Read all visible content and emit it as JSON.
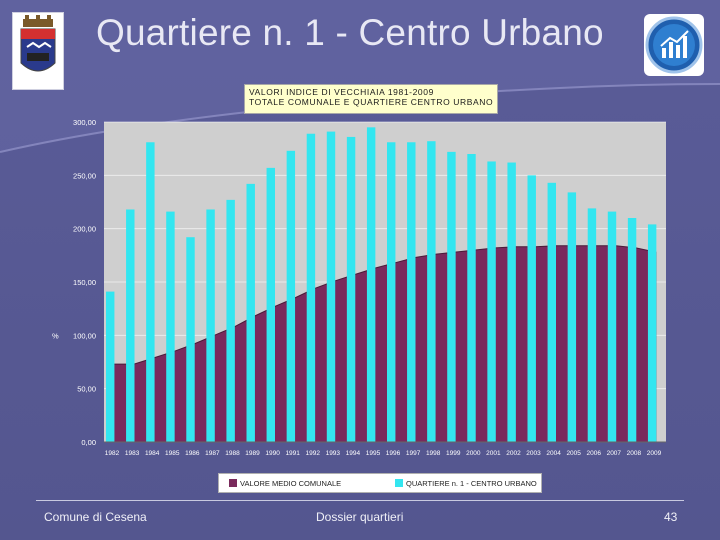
{
  "slide": {
    "title": "Quartiere n. 1 - Centro Urbano",
    "footer_left": "Comune di Cesena",
    "footer_center": "Dossier quartieri",
    "page_number": "43"
  },
  "colors": {
    "background": "#5a5c98",
    "plot_background": "#cfcfcf",
    "comunale": "#7a2a5c",
    "quartiere": "#33e6f0",
    "title_box": "#ffffcc"
  },
  "chart_data": {
    "type": "bar",
    "title_lines": [
      "VALORI INDICE DI VECCHIAIA 1981-2009",
      "TOTALE COMUNALE E QUARTIERE CENTRO URBANO"
    ],
    "ylabel": "%",
    "ylim": [
      0,
      300
    ],
    "yticks": [
      "0,00",
      "50,00",
      "100,00",
      "150,00",
      "200,00",
      "250,00",
      "300,00"
    ],
    "ytick_values": [
      0,
      50,
      100,
      150,
      200,
      250,
      300
    ],
    "categories": [
      "1982",
      "1983",
      "1984",
      "1985",
      "1986",
      "1987",
      "1988",
      "1989",
      "1990",
      "1991",
      "1992",
      "1993",
      "1994",
      "1995",
      "1996",
      "1997",
      "1998",
      "1999",
      "2000",
      "2001",
      "2002",
      "2003",
      "2004",
      "2005",
      "2006",
      "2007",
      "2008",
      "2009"
    ],
    "series": [
      {
        "name": "VALORE MEDIO COMUNALE",
        "style": "area",
        "values": [
          73,
          73,
          79,
          85,
          92,
          100,
          108,
          118,
          127,
          135,
          144,
          151,
          157,
          163,
          168,
          173,
          176,
          178,
          180,
          182,
          183,
          183,
          184,
          184,
          184,
          184,
          182,
          178
        ]
      },
      {
        "name": "QUARTIERE n. 1 - CENTRO URBANO",
        "style": "bar",
        "values": [
          141,
          218,
          281,
          216,
          192,
          218,
          227,
          242,
          257,
          273,
          289,
          291,
          286,
          295,
          281,
          281,
          282,
          272,
          270,
          263,
          262,
          250,
          243,
          234,
          219,
          216,
          210,
          204
        ]
      }
    ]
  }
}
